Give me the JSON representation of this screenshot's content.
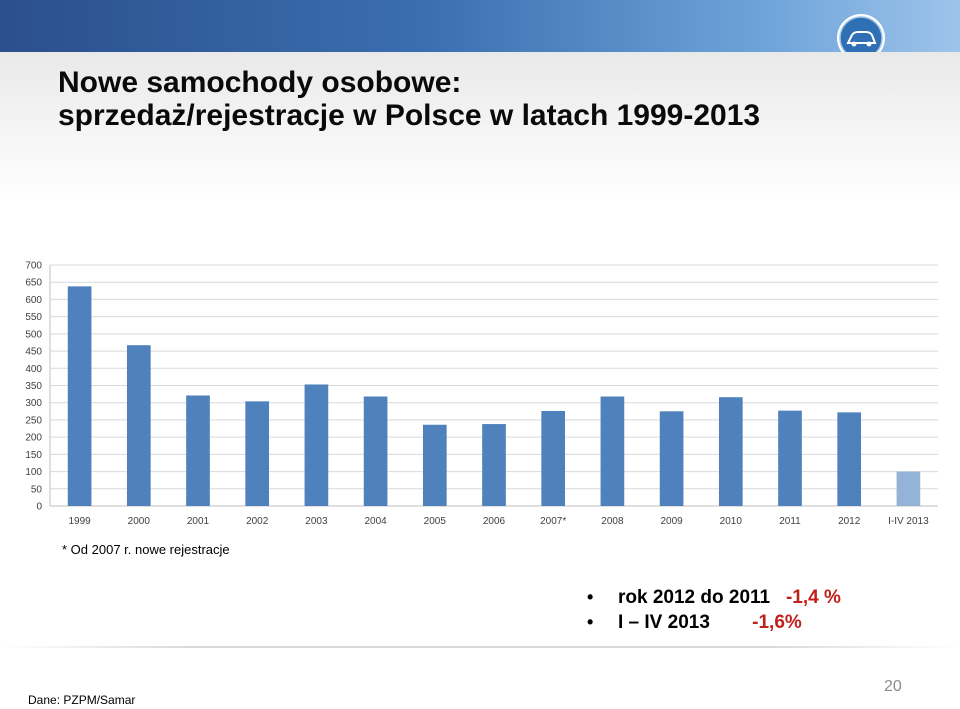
{
  "slide": {
    "title_line1": "Nowe samochody osobowe:",
    "title_line2": "sprzedaż/rejestracje w Polsce w latach 1999-2013",
    "footnote": "* Od 2007 r. nowe rejestracje",
    "bullets": [
      {
        "label": "rok 2012 do 2011   ",
        "value": "-1,4 %"
      },
      {
        "label": "I – IV 2013        ",
        "value": "-1,6%"
      }
    ],
    "source": "Dane: PZPM/Samar",
    "page_number": "20",
    "logo_icon": "car-logo-icon"
  },
  "colors": {
    "bar": "#4f81bd",
    "bar_highlight": "#95b3d7",
    "gridline": "#d9d9d9",
    "value_red": "#c0201b"
  },
  "chart_data": {
    "type": "bar",
    "title": "",
    "xlabel": "",
    "ylabel": "",
    "ylim": [
      0,
      700
    ],
    "yticks": [
      0,
      50,
      100,
      150,
      200,
      250,
      300,
      350,
      400,
      450,
      500,
      550,
      600,
      650,
      700
    ],
    "grid": true,
    "categories": [
      "1999",
      "2000",
      "2001",
      "2002",
      "2003",
      "2004",
      "2005",
      "2006",
      "2007*",
      "2008",
      "2009",
      "2010",
      "2011",
      "2012",
      "I-IV 2013"
    ],
    "values": [
      638,
      467,
      321,
      304,
      353,
      318,
      236,
      238,
      276,
      318,
      275,
      316,
      277,
      272,
      100
    ],
    "highlight": [
      "I-IV 2013"
    ]
  }
}
